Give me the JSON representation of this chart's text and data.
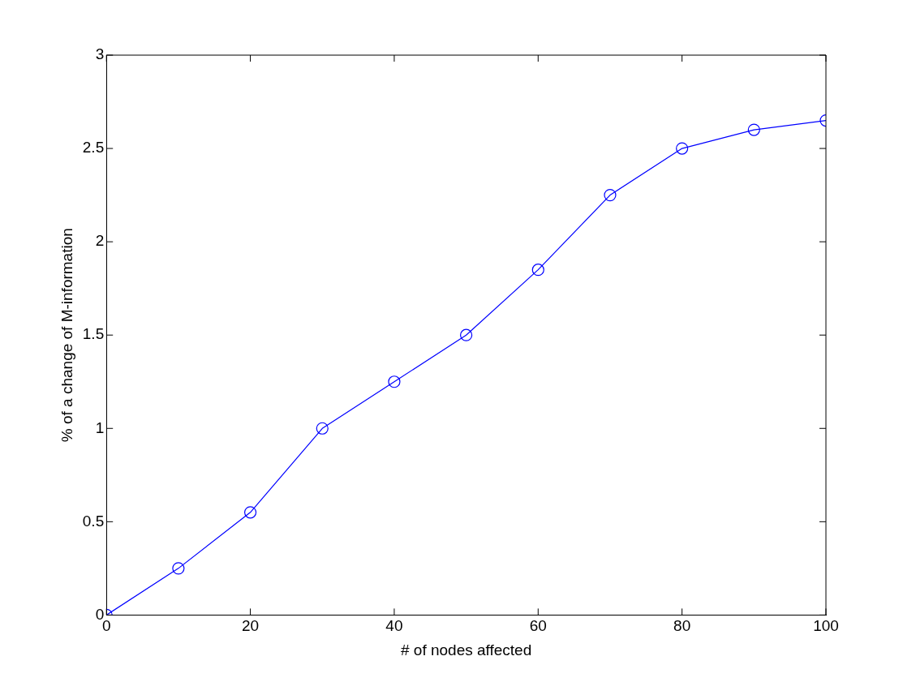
{
  "chart_data": {
    "type": "line",
    "xlabel": "# of nodes affected",
    "ylabel": "% of a change of M-information",
    "x": [
      0,
      10,
      20,
      30,
      40,
      50,
      60,
      70,
      80,
      90,
      100
    ],
    "series": [
      {
        "color": "#0000ff",
        "values": [
          0,
          0.25,
          0.55,
          1.0,
          1.25,
          1.5,
          1.85,
          2.25,
          2.5,
          2.6,
          2.65
        ]
      }
    ],
    "xlim": [
      0,
      100
    ],
    "xticks": [
      0,
      20,
      40,
      60,
      80,
      100
    ],
    "ylim": [
      0,
      3
    ],
    "yticks": [
      0,
      0.5,
      1,
      1.5,
      2,
      2.5,
      3
    ],
    "grid": false,
    "legend": false,
    "marker": "circle",
    "line_style": "solid"
  }
}
